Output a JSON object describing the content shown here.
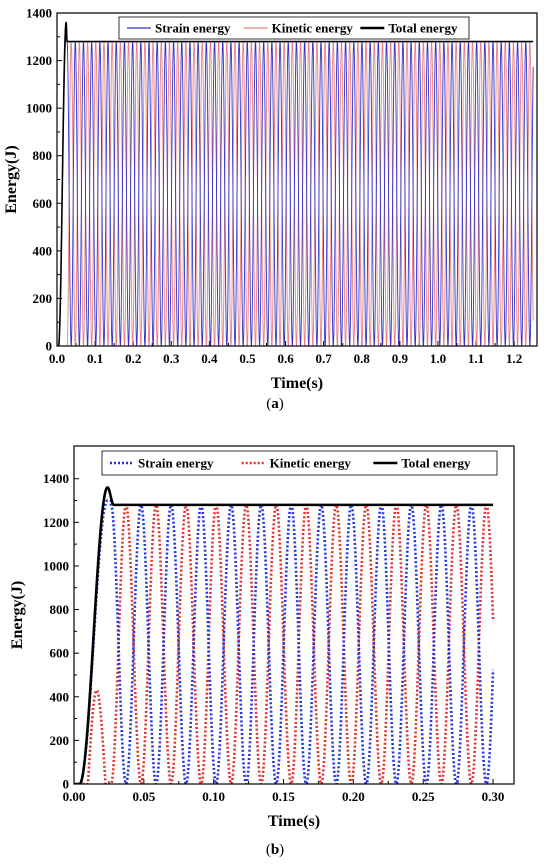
{
  "chart_data": [
    {
      "id": "a",
      "type": "line",
      "caption_prefix": "(",
      "caption_letter": "a",
      "caption_suffix": ")",
      "xlabel": "Time(s)",
      "ylabel": "Energy(J)",
      "xlim": [
        0.0,
        1.26
      ],
      "ylim": [
        0,
        1400
      ],
      "xticks": [
        0.0,
        0.1,
        0.2,
        0.3,
        0.4,
        0.5,
        0.6,
        0.7,
        0.8,
        0.9,
        1.0,
        1.1,
        1.2
      ],
      "xtick_labels": [
        "0.0",
        "0.1",
        "0.2",
        "0.3",
        "0.4",
        "0.5",
        "0.6",
        "0.7",
        "0.8",
        "0.9",
        "1.0",
        "1.1",
        "1.2"
      ],
      "yticks": [
        0,
        200,
        400,
        600,
        800,
        1000,
        1200,
        1400
      ],
      "ytick_labels": [
        "0",
        "200",
        "400",
        "600",
        "800",
        "1000",
        "1200",
        "1400"
      ],
      "legend_position": "top",
      "series": [
        {
          "name": "Strain energy",
          "color": "#3333cc",
          "style": "solid",
          "period": 0.0215,
          "amplitude": 1280,
          "start": 0.0265,
          "end": 1.25
        },
        {
          "name": "Kinetic energy",
          "color": "#ee8080",
          "style": "solid",
          "period": 0.0215,
          "amplitude": 1280,
          "start": 0.0265,
          "end": 1.25
        },
        {
          "name": "Total energy",
          "color": "#000000",
          "style": "solid",
          "peak": 1360,
          "peak_time": 0.024,
          "plateau": 1280,
          "plateau_time": 0.0265,
          "end": 1.25
        }
      ]
    },
    {
      "id": "b",
      "type": "line",
      "caption_prefix": "(",
      "caption_letter": "b",
      "caption_suffix": ")",
      "xlabel": "Time(s)",
      "ylabel": "Energy(J)",
      "xlim": [
        0.0,
        0.315
      ],
      "ylim": [
        0,
        1550
      ],
      "xticks": [
        0.0,
        0.05,
        0.1,
        0.15,
        0.2,
        0.25,
        0.3
      ],
      "xtick_labels": [
        "0.00",
        "0.05",
        "0.10",
        "0.15",
        "0.20",
        "0.25",
        "0.30"
      ],
      "yticks": [
        0,
        200,
        400,
        600,
        800,
        1000,
        1200,
        1400
      ],
      "ytick_labels": [
        "0",
        "200",
        "400",
        "600",
        "800",
        "1000",
        "1200",
        "1400"
      ],
      "legend_position": "top",
      "series": [
        {
          "name": "Strain energy",
          "color": "#2233dd",
          "style": "dotted",
          "period": 0.0215,
          "amplitude": 1280,
          "start": 0.0265,
          "end": 0.3
        },
        {
          "name": "Kinetic energy",
          "color": "#e03030",
          "style": "dotted",
          "period": 0.0215,
          "amplitude": 1280,
          "start": 0.0265,
          "end": 0.3,
          "early_peak": 430,
          "early_peak_time": 0.016
        },
        {
          "name": "Total energy",
          "color": "#000000",
          "style": "solid",
          "peak": 1360,
          "peak_time": 0.024,
          "plateau": 1280,
          "plateau_time": 0.0285,
          "end": 0.3
        }
      ]
    }
  ]
}
